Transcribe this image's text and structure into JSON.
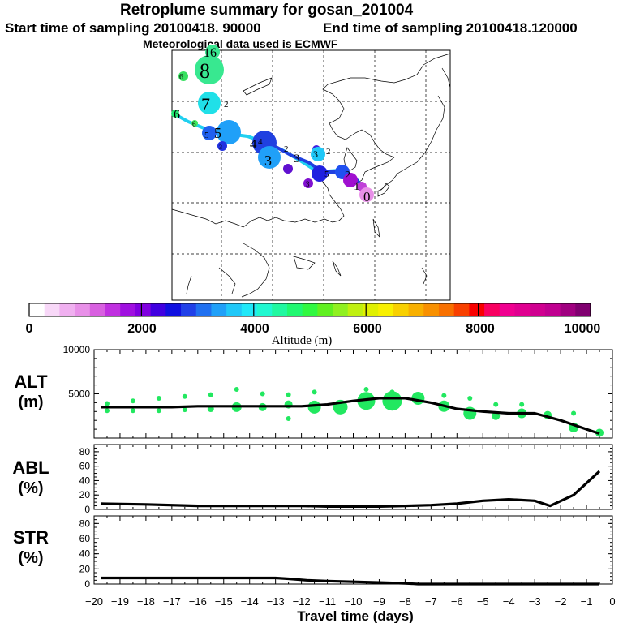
{
  "header": {
    "title": "Retroplume summary for gosan_201004",
    "start_label": "Start time of sampling 20100418. 90000",
    "end_label": "End time of sampling 20100418.120000",
    "met_label": "Meteorological data used is ECMWF"
  },
  "colorbar": {
    "ticks": [
      "0",
      "2000",
      "4000",
      "6000",
      "8000",
      "10000"
    ],
    "label": "Altitude (m)",
    "colors": [
      "#ffffff",
      "#f8d8f8",
      "#f0b0f0",
      "#e890e8",
      "#d860e0",
      "#c030e0",
      "#a010e0",
      "#8000e0",
      "#4000e0",
      "#1010e0",
      "#2040e8",
      "#2070f0",
      "#20a0f8",
      "#20c8f8",
      "#20e8f8",
      "#20f8d0",
      "#20f8a0",
      "#20f870",
      "#30f840",
      "#60f020",
      "#90f020",
      "#c0f010",
      "#e0f000",
      "#f8f000",
      "#f8d000",
      "#f8b000",
      "#f89000",
      "#f87000",
      "#f84000",
      "#f80000",
      "#f80060",
      "#f00090",
      "#e00090",
      "#d00090",
      "#c00090",
      "#a00080",
      "#800070"
    ]
  },
  "map": {
    "trajectory_labels": [
      "0",
      "1",
      "2",
      "3",
      "4",
      "5",
      "6",
      "7",
      "8",
      "16",
      "6",
      "2",
      "3",
      "2",
      "3",
      "3",
      "2",
      "5",
      "3",
      "4",
      "5",
      "6"
    ]
  },
  "colors": {
    "line": "#000000",
    "dots": "#22e860",
    "path_light": "#20d0f0",
    "path_dark": "#2040e0"
  },
  "chart_data": [
    {
      "type": "line",
      "name": "ALT",
      "ylabel": "ALT\n(m)",
      "ylabel_lines": [
        "ALT",
        "(m)"
      ],
      "ylim": [
        0,
        10000
      ],
      "yticks": [
        "5000",
        "10000"
      ],
      "ytick_values": [
        5000,
        10000
      ],
      "x": [
        -19.75,
        -19,
        -18,
        -17,
        -16,
        -15,
        -14,
        -13,
        -12.5,
        -12,
        -11,
        -10,
        -9,
        -8,
        -7,
        -6,
        -5,
        -4,
        -3,
        -2,
        -1,
        -0.5
      ],
      "values": [
        3500,
        3500,
        3500,
        3500,
        3600,
        3600,
        3600,
        3600,
        3600,
        3600,
        3800,
        4200,
        4500,
        4500,
        4000,
        3300,
        3000,
        2800,
        2800,
        2000,
        1000,
        500
      ],
      "scatter_x": [
        -19.5,
        -19.5,
        -18.5,
        -18.5,
        -17.5,
        -17.5,
        -16.5,
        -16.5,
        -15.5,
        -15.5,
        -14.5,
        -14.5,
        -13.5,
        -13.5,
        -12.5,
        -12.5,
        -12.5,
        -11.5,
        -11.5,
        -10.5,
        -9.5,
        -9.5,
        -8.5,
        -8.5,
        -7.5,
        -6.5,
        -6.5,
        -5.5,
        -5.5,
        -4.5,
        -4.5,
        -3.5,
        -3.5,
        -2.5,
        -1.5,
        -1.5,
        -0.5
      ],
      "scatter_y": [
        3900,
        3100,
        4200,
        3100,
        4500,
        3100,
        4700,
        3200,
        4900,
        3300,
        5500,
        3500,
        5000,
        3500,
        4900,
        3800,
        2200,
        5200,
        3500,
        3500,
        5500,
        4200,
        5200,
        4200,
        4500,
        4800,
        3600,
        4500,
        2800,
        3800,
        2500,
        3800,
        2800,
        2600,
        2800,
        1200,
        600
      ],
      "scatter_size": [
        3,
        3,
        3,
        3,
        3,
        3,
        3,
        3,
        3,
        4,
        3,
        6,
        3,
        5,
        3,
        5,
        3,
        3,
        8,
        9,
        3,
        11,
        3,
        12,
        8,
        3,
        7,
        3,
        8,
        3,
        5,
        3,
        6,
        5,
        3,
        6,
        5
      ]
    },
    {
      "type": "line",
      "name": "ABL",
      "ylabel": "ABL\n(%)",
      "ylabel_lines": [
        "ABL",
        "(%)"
      ],
      "ylim": [
        0,
        90
      ],
      "yticks": [
        "0",
        "20",
        "40",
        "60",
        "80"
      ],
      "ytick_values": [
        0,
        20,
        40,
        60,
        80
      ],
      "x": [
        -19.75,
        -18,
        -16,
        -14,
        -12,
        -11,
        -10,
        -9,
        -8,
        -7,
        -6,
        -5,
        -4,
        -3,
        -2.4,
        -1.5,
        -0.5
      ],
      "values": [
        8,
        7,
        5,
        5,
        5,
        4,
        4,
        4,
        5,
        6,
        8,
        12,
        14,
        12,
        5,
        20,
        53
      ]
    },
    {
      "type": "line",
      "name": "STR",
      "ylabel": "STR\n(%)",
      "ylabel_lines": [
        "STR",
        "(%)"
      ],
      "ylim": [
        0,
        90
      ],
      "yticks": [
        "0",
        "20",
        "40",
        "60",
        "80"
      ],
      "ytick_values": [
        0,
        20,
        40,
        60,
        80
      ],
      "x": [
        -19.75,
        -17,
        -15,
        -13,
        -12.5,
        -11.8,
        -11,
        -10,
        -9,
        -8,
        -7.5,
        -6,
        -4,
        -2,
        -0.5
      ],
      "values": [
        8,
        8,
        8,
        8,
        7,
        5,
        4,
        3,
        2,
        1,
        0,
        0,
        0,
        0,
        0
      ],
      "xlabel": "Travel time (days)",
      "xticks": [
        "−20",
        "−19",
        "−18",
        "−17",
        "−16",
        "−15",
        "−14",
        "−13",
        "−12",
        "−11",
        "−10",
        "−9",
        "−8",
        "−7",
        "−6",
        "−5",
        "−4",
        "−3",
        "−2",
        "−1",
        "0"
      ],
      "xtick_values": [
        -20,
        -19,
        -18,
        -17,
        -16,
        -15,
        -14,
        -13,
        -12,
        -11,
        -10,
        -9,
        -8,
        -7,
        -6,
        -5,
        -4,
        -3,
        -2,
        -1,
        0
      ],
      "xlim": [
        -20,
        0
      ]
    }
  ]
}
